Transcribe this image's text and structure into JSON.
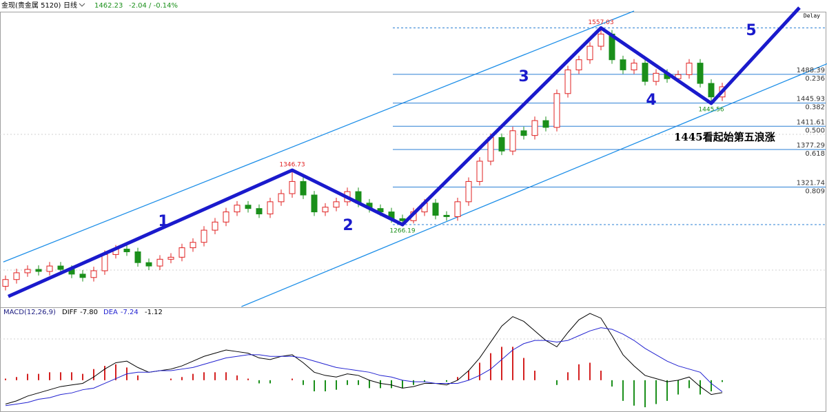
{
  "header": {
    "symbol": "金现(贵金属 5120)",
    "period": "日线",
    "price": "1462.23",
    "change": "-2.04 / -0.14%",
    "delay": "Delay"
  },
  "chart_data": [
    {
      "type": "candlestick",
      "ylim": [
        1145,
        1580
      ],
      "up_color": "#e02020",
      "down_color": "#1a8f1a",
      "open": [
        1175,
        1185,
        1195,
        1200,
        1197,
        1205,
        1200,
        1193,
        1188,
        1198,
        1222,
        1230,
        1226,
        1210,
        1205,
        1215,
        1218,
        1232,
        1240,
        1258,
        1270,
        1285,
        1295,
        1290,
        1282,
        1300,
        1312,
        1330,
        1310,
        1285,
        1292,
        1300,
        1315,
        1298,
        1290,
        1285,
        1275,
        1272,
        1285,
        1298,
        1280,
        1278,
        1300,
        1330,
        1360,
        1395,
        1375,
        1405,
        1398,
        1420,
        1410,
        1460,
        1495,
        1510,
        1530,
        1548,
        1510,
        1495,
        1505,
        1478,
        1490,
        1482,
        1488,
        1505,
        1475,
        1455
      ],
      "high": [
        1191,
        1201,
        1206,
        1206,
        1211,
        1211,
        1206,
        1199,
        1204,
        1228,
        1236,
        1236,
        1232,
        1216,
        1221,
        1224,
        1238,
        1246,
        1264,
        1276,
        1291,
        1301,
        1301,
        1296,
        1306,
        1318,
        1346.73,
        1336,
        1316,
        1298,
        1306,
        1321,
        1321,
        1304,
        1296,
        1291,
        1281,
        1291,
        1304,
        1304,
        1286,
        1306,
        1336,
        1366,
        1401,
        1401,
        1411,
        1411,
        1426,
        1426,
        1466,
        1501,
        1516,
        1536,
        1557.03,
        1554,
        1516,
        1511,
        1511,
        1496,
        1496,
        1494,
        1511,
        1511,
        1481,
        1476
      ],
      "low": [
        1169,
        1179,
        1189,
        1191,
        1191,
        1194,
        1187,
        1182,
        1182,
        1192,
        1216,
        1220,
        1204,
        1199,
        1199,
        1209,
        1212,
        1226,
        1234,
        1252,
        1264,
        1279,
        1284,
        1276,
        1276,
        1294,
        1306,
        1304,
        1279,
        1279,
        1286,
        1294,
        1292,
        1284,
        1279,
        1269,
        1266.19,
        1268,
        1279,
        1274,
        1272,
        1272,
        1294,
        1324,
        1354,
        1369,
        1369,
        1392,
        1392,
        1404,
        1404,
        1454,
        1489,
        1504,
        1524,
        1504,
        1489,
        1489,
        1472,
        1472,
        1476,
        1476,
        1482,
        1469,
        1445.56,
        1449
      ],
      "close": [
        1185,
        1195,
        1200,
        1197,
        1205,
        1200,
        1193,
        1188,
        1198,
        1222,
        1230,
        1226,
        1210,
        1205,
        1215,
        1218,
        1232,
        1240,
        1258,
        1270,
        1285,
        1295,
        1290,
        1282,
        1300,
        1312,
        1330,
        1310,
        1285,
        1292,
        1300,
        1315,
        1298,
        1290,
        1285,
        1275,
        1272,
        1285,
        1298,
        1280,
        1278,
        1300,
        1330,
        1360,
        1395,
        1375,
        1405,
        1398,
        1420,
        1410,
        1460,
        1495,
        1510,
        1530,
        1548,
        1510,
        1495,
        1505,
        1478,
        1490,
        1482,
        1488,
        1505,
        1475,
        1455,
        1470
      ],
      "levels": [
        1488.39,
        1445.93,
        1411.61,
        1377.29,
        1321.74
      ],
      "level_ratios": [
        "0.236",
        "0.382",
        "0.500",
        "0.618",
        "0.809"
      ],
      "level_color": "#2a7fd4",
      "channels": [
        {
          "x": [
            -0.2,
            57
          ],
          "y": [
            1211,
            1582
          ]
        },
        {
          "x": [
            21.4,
            74.5
          ],
          "y": [
            1145,
            1504
          ]
        }
      ],
      "channel_color": "#1e8fe8",
      "waves": {
        "x": [
          0.25,
          26,
          36,
          54,
          64,
          72
        ],
        "y": [
          1160,
          1346.73,
          1266.19,
          1557.03,
          1445.56,
          1587
        ],
        "labels": [
          "1",
          "2",
          "3",
          "4",
          "5"
        ],
        "color": "#1a1acc"
      },
      "annotation": "1445看起始第五浪涨"
    },
    {
      "type": "macd",
      "title": "MACD(12,26,9)",
      "ylim": [
        -20,
        45
      ],
      "series": [
        {
          "name": "DIFF",
          "current_label": "-7.80",
          "color": "#000000",
          "values": [
            -15,
            -13,
            -10,
            -8,
            -6,
            -4,
            -3,
            -2,
            2,
            7,
            11,
            12,
            8,
            5,
            6,
            7,
            9,
            12,
            15,
            17,
            19,
            18,
            17,
            14,
            13,
            15,
            16,
            11,
            5,
            3,
            2,
            4,
            3,
            0,
            -2,
            -3,
            -5,
            -4,
            -2,
            -2,
            -3,
            0,
            6,
            14,
            24,
            34,
            40,
            37,
            31,
            25,
            21,
            30,
            38,
            42,
            39,
            28,
            16,
            9,
            3,
            1,
            -1,
            0,
            2,
            -4,
            -9,
            -7.8
          ]
        },
        {
          "name": "DEA",
          "current_label": "-7.24",
          "color": "#2020d0",
          "values": [
            -16,
            -15,
            -14,
            -12,
            -11,
            -9,
            -8,
            -6,
            -5,
            -2,
            1,
            4,
            5,
            5,
            6,
            6,
            7,
            8,
            10,
            12,
            14,
            15,
            16,
            16,
            15,
            15,
            15,
            14,
            12,
            10,
            8,
            7,
            6,
            5,
            3,
            2,
            0,
            -1,
            -1,
            -2,
            -2,
            -2,
            0,
            3,
            7,
            13,
            19,
            23,
            25,
            25,
            24,
            25,
            28,
            31,
            33,
            32,
            29,
            25,
            20,
            16,
            12,
            9,
            7,
            5,
            -2,
            -7.24
          ]
        }
      ],
      "hist": [
        1,
        2,
        4,
        4,
        5,
        5,
        5,
        4,
        7,
        9,
        10,
        8,
        3,
        0,
        0,
        1,
        2,
        4,
        5,
        5,
        5,
        3,
        1,
        -2,
        -2,
        0,
        1,
        -3,
        -7,
        -7,
        -6,
        -3,
        -3,
        -5,
        -5,
        -5,
        -5,
        -3,
        -1,
        0,
        -1,
        2,
        6,
        11,
        17,
        21,
        21,
        14,
        6,
        0,
        -3,
        5,
        10,
        11,
        6,
        -4,
        -13,
        -16,
        -17,
        -15,
        -13,
        -9,
        -5,
        -9,
        -7,
        -1.12
      ],
      "hist_up_color": "#d42020",
      "hist_down_color": "#1a8f1a"
    }
  ]
}
